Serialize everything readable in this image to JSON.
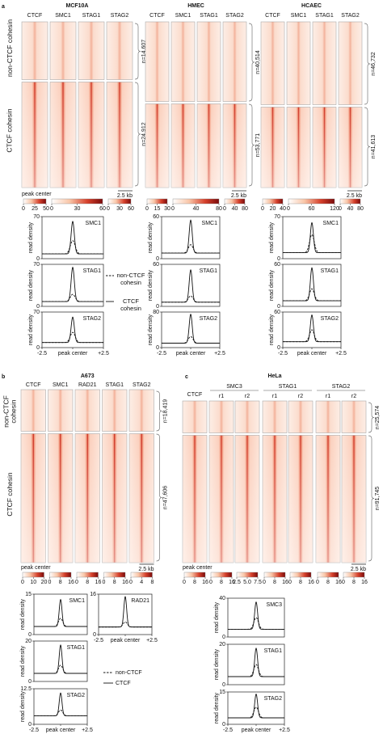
{
  "panels": [
    {
      "label": "a",
      "row_labels": [
        "non-CTCF cohesin",
        "CTCF cohesin"
      ],
      "legend": [
        "non-CTCF cohesin",
        "CTCF cohesin"
      ],
      "y_label": "read density",
      "xlim": [
        -2.5,
        2.5
      ],
      "xticks": [
        -2.5,
        {
          "value": 0,
          "label": "peak center"
        },
        {
          "value": 2.5,
          "label": "+2.5"
        }
      ],
      "groups": [
        {
          "title": "MCF10A",
          "columns": [
            "CTCF",
            "SMC1",
            "STAG1",
            "STAG2"
          ],
          "counts": [
            "n=14,607",
            "n=24,912"
          ],
          "peak_center": "peak center",
          "scale_bar": "2.5 kb",
          "colorbars": [
            [
              0,
              25,
              50
            ],
            [
              0,
              30,
              60
            ],
            [
              0,
              30,
              60
            ]
          ],
          "profiles": [
            {
              "label": "SMC1",
              "ylim": [
                0,
                70
              ],
              "yticks": [
                0,
                70
              ],
              "peak_ctcf": 62,
              "peak_non_ctcf": 30,
              "base": 8
            },
            {
              "label": "STAG1",
              "ylim": [
                0,
                70
              ],
              "yticks": [
                0,
                70
              ],
              "peak_ctcf": 65,
              "peak_non_ctcf": 20,
              "base": 8
            },
            {
              "label": "STAG2",
              "ylim": [
                0,
                70
              ],
              "yticks": [
                0,
                70
              ],
              "peak_ctcf": 60,
              "peak_non_ctcf": 30,
              "base": 10
            }
          ]
        },
        {
          "title": "HMEC",
          "columns": [
            "CTCF",
            "SMC1",
            "STAG1",
            "STAG2"
          ],
          "counts": [
            "n=40,514",
            "n=53,771"
          ],
          "scale_bar": "2.5 kb",
          "colorbars": [
            [
              0,
              15,
              30
            ],
            [
              0,
              40,
              80
            ],
            [
              0,
              40,
              80
            ]
          ],
          "profiles": [
            {
              "label": "SMC1",
              "ylim": [
                0,
                60
              ],
              "yticks": [
                0,
                60
              ],
              "peak_ctcf": 55,
              "peak_non_ctcf": 20,
              "base": 8
            },
            {
              "label": "STAG1",
              "ylim": [
                0,
                60
              ],
              "yticks": [
                0,
                60
              ],
              "peak_ctcf": 52,
              "peak_non_ctcf": 15,
              "base": 6
            },
            {
              "label": "STAG2",
              "ylim": [
                0,
                80
              ],
              "yticks": [
                0,
                80
              ],
              "peak_ctcf": 75,
              "peak_non_ctcf": 25,
              "base": 10
            }
          ]
        },
        {
          "title": "HCAEC",
          "columns": [
            "CTCF",
            "SMC1",
            "STAG1",
            "STAG2"
          ],
          "counts": [
            "n=46,732",
            "n=41,613"
          ],
          "scale_bar": "2.5 kb",
          "colorbars": [
            [
              0,
              20,
              40
            ],
            [
              0,
              60,
              120
            ],
            [
              0,
              40,
              80
            ]
          ],
          "profiles": [
            {
              "label": "SMC1",
              "ylim": [
                0,
                70
              ],
              "yticks": [
                0,
                70
              ],
              "peak_ctcf": 60,
              "peak_non_ctcf": 40,
              "base": 10
            },
            {
              "label": "STAG1",
              "ylim": [
                0,
                60
              ],
              "yticks": [
                0,
                60
              ],
              "peak_ctcf": 55,
              "peak_non_ctcf": 25,
              "base": 8
            },
            {
              "label": "STAG2",
              "ylim": [
                0,
                60
              ],
              "yticks": [
                0,
                60
              ],
              "peak_ctcf": 55,
              "peak_non_ctcf": 30,
              "base": 10
            }
          ]
        }
      ]
    },
    {
      "label": "b",
      "row_labels": [
        "non-CTCF cohesin",
        "CTCF cohesin"
      ],
      "legend": [
        "non-CTCF",
        "CTCF"
      ],
      "y_label": "read density",
      "xlim": [
        -2.5,
        2.5
      ],
      "xticks": [
        -2.5,
        {
          "value": 0,
          "label": "peak center"
        },
        {
          "value": 2.5,
          "label": "+2.5"
        }
      ],
      "groups": [
        {
          "title": "A673",
          "columns": [
            "CTCF",
            "SMC1",
            "RAD21",
            "STAG1",
            "STAG2"
          ],
          "counts": [
            "n=18,419",
            "n=47,606"
          ],
          "peak_center": "peak center",
          "scale_bar": "2.5 kb",
          "colorbars": [
            [
              0,
              10,
              20
            ],
            [
              0,
              8,
              16
            ],
            [
              0,
              8,
              16
            ],
            [
              0,
              8,
              16
            ],
            [
              0,
              4,
              8
            ]
          ],
          "profiles": [
            {
              "label": "SMC1",
              "ylim": [
                0,
                15
              ],
              "yticks": [
                0,
                15
              ],
              "peak_ctcf": 13,
              "peak_non_ctcf": 6,
              "base": 3
            },
            {
              "label": "RAD21",
              "ylim": [
                0,
                16
              ],
              "yticks": [
                0,
                16
              ],
              "peak_ctcf": 15,
              "peak_non_ctcf": 5,
              "base": 3
            },
            {
              "label": "STAG1",
              "ylim": [
                0,
                20
              ],
              "yticks": [
                0,
                20
              ],
              "peak_ctcf": 18,
              "peak_non_ctcf": 8,
              "base": 4
            },
            {
              "label": "STAG2",
              "ylim": [
                0,
                12.5
              ],
              "yticks": [
                0,
                12.5
              ],
              "peak_ctcf": 11,
              "peak_non_ctcf": 5,
              "base": 3
            }
          ]
        }
      ]
    },
    {
      "label": "c",
      "y_label": "read density",
      "xlim": [
        -2.5,
        2.5
      ],
      "xticks": [
        -2.5,
        {
          "value": 0,
          "label": "peak center"
        },
        {
          "value": 2.5,
          "label": "+2.5"
        }
      ],
      "groups": [
        {
          "title": "HeLa",
          "columns": [
            {
              "name": "CTCF"
            },
            {
              "name": "SMC3",
              "replicates": [
                "r1",
                "r2"
              ]
            },
            {
              "name": "STAG1",
              "replicates": [
                "r1",
                "r2"
              ]
            },
            {
              "name": "STAG2",
              "replicates": [
                "r1",
                "r2"
              ]
            }
          ],
          "counts": [
            "n=25,574",
            "n=91,745"
          ],
          "peak_center": "peak center",
          "scale_bar": "2.5 kb",
          "colorbars": [
            [
              0,
              8,
              16
            ],
            [
              0,
              8,
              16
            ],
            [
              2.5,
              {
                "value": 5,
                "label": "5.0"
              },
              7.5
            ],
            [
              0,
              8,
              16
            ],
            [
              0,
              8,
              16
            ],
            [
              0,
              8,
              16
            ],
            [
              0,
              8,
              16
            ]
          ],
          "profiles": [
            {
              "label": "SMC3",
              "ylim": [
                0,
                40
              ],
              "yticks": [
                0,
                40
              ],
              "peak_ctcf": 36,
              "peak_non_ctcf": 20,
              "base": 8
            },
            {
              "label": "STAG1",
              "ylim": [
                0,
                20
              ],
              "yticks": [
                0,
                20
              ],
              "peak_ctcf": 18,
              "peak_non_ctcf": 10,
              "base": 4
            },
            {
              "label": "STAG2",
              "ylim": [
                0,
                15
              ],
              "yticks": [
                0,
                15
              ],
              "peak_ctcf": 14,
              "peak_non_ctcf": 8,
              "base": 3
            }
          ]
        }
      ]
    }
  ]
}
